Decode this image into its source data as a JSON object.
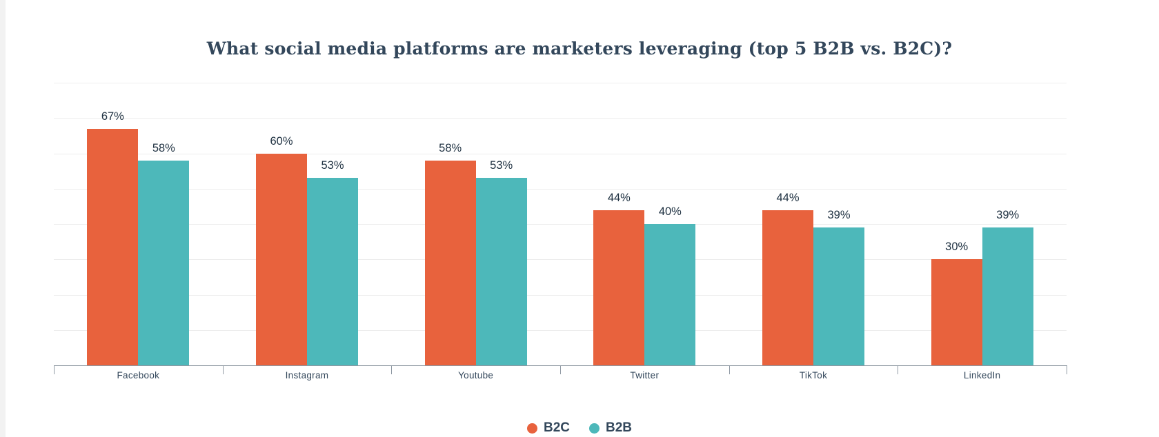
{
  "chart_data": {
    "type": "bar",
    "title": "What social media platforms are marketers leveraging (top 5 B2B vs. B2C)?",
    "categories": [
      "Facebook",
      "Instagram",
      "Youtube",
      "Twitter",
      "TikTok",
      "LinkedIn"
    ],
    "series": [
      {
        "name": "B2C",
        "color": "#e8623d",
        "values": [
          67,
          60,
          58,
          44,
          44,
          30
        ]
      },
      {
        "name": "B2B",
        "color": "#4db8ba",
        "values": [
          58,
          53,
          53,
          40,
          39,
          39
        ]
      }
    ],
    "value_suffix": "%",
    "ylim": [
      0,
      80
    ],
    "grid_step": 10,
    "grid": true,
    "legend_position": "bottom",
    "xlabel": "",
    "ylabel": ""
  },
  "colors": {
    "title_text": "#33475b",
    "axis_line": "#8f99a3",
    "gridline": "#ededed",
    "value_label": "#213343"
  }
}
